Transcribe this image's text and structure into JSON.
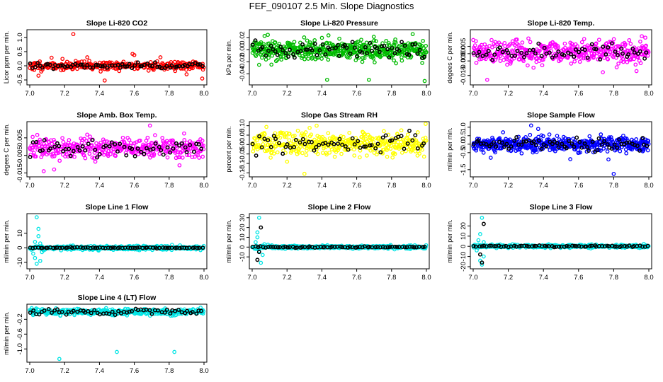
{
  "main_title": "FEF_090107  2.5 Min. Slope Diagnostics",
  "chart_data": [
    {
      "type": "scatter",
      "title": "Slope Li-820 CO2",
      "ylabel": "Licor ppm per min.",
      "color": "#ff0000",
      "xlim": [
        7.0,
        8.0
      ],
      "ylim": [
        -0.6,
        1.2
      ],
      "x_ticks": [
        "7.0",
        "7.2",
        "7.4",
        "7.6",
        "7.8",
        "8.0"
      ],
      "y_ticks": [
        {
          "v": -0.5,
          "l": "-0.5"
        },
        {
          "v": 0,
          "l": "0.0"
        },
        {
          "v": 0.5,
          "l": "0.5"
        },
        {
          "v": 1.0,
          "l": "1.0"
        }
      ],
      "series": [
        {
          "role": "main",
          "center": 0,
          "spread": 0.08,
          "count": 320,
          "seed": 11,
          "outliers": [
            [
              7.25,
              1.12
            ],
            [
              7.43,
              -0.52
            ],
            [
              7.6,
              0.38
            ],
            [
              7.59,
              0.42
            ],
            [
              7.99,
              -0.45
            ],
            [
              7.05,
              -0.35
            ],
            [
              7.9,
              -0.3
            ],
            [
              7.33,
              0.3
            ],
            [
              7.75,
              0.3
            ]
          ]
        },
        {
          "role": "highlight",
          "center": 0,
          "spread": 0.06,
          "count": 70,
          "seed": 12
        }
      ]
    },
    {
      "type": "scatter",
      "title": "Slope Li-820 Pressure",
      "ylabel": "kPa per min.",
      "color": "#00bb00",
      "xlim": [
        7.0,
        8.0
      ],
      "ylim": [
        -0.055,
        0.03
      ],
      "x_ticks": [
        "7.0",
        "7.2",
        "7.4",
        "7.6",
        "7.8",
        "8.0"
      ],
      "y_ticks": [
        {
          "v": -0.04,
          "l": "-0.04"
        },
        {
          "v": -0.02,
          "l": "-0.02"
        },
        {
          "v": 0,
          "l": "0.00"
        },
        {
          "v": 0.02,
          "l": "0.02"
        }
      ],
      "series": [
        {
          "role": "main",
          "center": 0,
          "spread": 0.008,
          "count": 480,
          "seed": 21,
          "outliers": [
            [
              7.04,
              -0.025
            ],
            [
              7.43,
              -0.05
            ],
            [
              7.67,
              -0.05
            ],
            [
              7.99,
              -0.052
            ],
            [
              7.09,
              0.025
            ]
          ]
        },
        {
          "role": "highlight",
          "center": 0,
          "spread": 0.007,
          "count": 70,
          "seed": 22
        }
      ]
    },
    {
      "type": "scatter",
      "title": "Slope Li-820 Temp.",
      "ylabel": "degees C per min.",
      "color": "#ff00ff",
      "xlim": [
        7.0,
        8.0
      ],
      "ylim": [
        -0.02,
        0.015
      ],
      "x_ticks": [
        "7.0",
        "7.2",
        "7.4",
        "7.6",
        "7.8",
        "8.0"
      ],
      "y_ticks": [
        {
          "v": -0.015,
          "l": "-0.015"
        },
        {
          "v": -0.005,
          "l": "-0.005"
        },
        {
          "v": 0.0,
          "l": "0.000"
        },
        {
          "v": 0.005,
          "l": "0.005"
        }
      ],
      "series": [
        {
          "role": "main",
          "center": 0.001,
          "spread": 0.004,
          "count": 420,
          "seed": 31,
          "outliers": [
            [
              7.08,
              -0.018
            ],
            [
              7.96,
              0.012
            ],
            [
              7.98,
              0.011
            ],
            [
              7.93,
              -0.012
            ]
          ]
        },
        {
          "role": "highlight",
          "center": 0.001,
          "spread": 0.003,
          "count": 60,
          "seed": 32
        }
      ]
    },
    {
      "type": "scatter",
      "title": "Slope Amb. Box Temp.",
      "ylabel": "degees C per min.",
      "color": "#ff00ff",
      "xlim": [
        7.0,
        8.0
      ],
      "ylim": [
        -0.016,
        0.013
      ],
      "x_ticks": [
        "7.0",
        "7.2",
        "7.4",
        "7.6",
        "7.8",
        "8.0"
      ],
      "y_ticks": [
        {
          "v": -0.015,
          "l": "-0.015"
        },
        {
          "v": -0.005,
          "l": "-0.005"
        },
        {
          "v": 0.005,
          "l": "0.005"
        }
      ],
      "series": [
        {
          "role": "main",
          "center": -0.001,
          "spread": 0.003,
          "count": 380,
          "seed": 41,
          "outliers": [
            [
              7.69,
              0.012
            ],
            [
              7.08,
              -0.014
            ],
            [
              7.14,
              -0.013
            ]
          ]
        },
        {
          "role": "highlight",
          "center": -0.001,
          "spread": 0.0025,
          "count": 60,
          "seed": 42
        }
      ]
    },
    {
      "type": "scatter",
      "title": "Slope Gas Stream RH",
      "ylabel": "percent per min.",
      "color": "#ffff00",
      "xlim": [
        7.0,
        8.0
      ],
      "ylim": [
        -0.16,
        0.11
      ],
      "x_ticks": [
        "7.0",
        "7.2",
        "7.4",
        "7.6",
        "7.8",
        "8.0"
      ],
      "y_ticks": [
        {
          "v": -0.15,
          "l": "-0.15"
        },
        {
          "v": -0.1,
          "l": "-0.10"
        },
        {
          "v": -0.05,
          "l": "-0.05"
        },
        {
          "v": 0,
          "l": "0.00"
        },
        {
          "v": 0.05,
          "l": "0.05"
        },
        {
          "v": 0.1,
          "l": "0.10"
        }
      ],
      "series": [
        {
          "role": "main",
          "center": 0.005,
          "spread": 0.03,
          "count": 420,
          "seed": 51,
          "outliers": [
            [
              7.3,
              -0.155
            ],
            [
              7.37,
              0.1
            ]
          ]
        },
        {
          "role": "highlight",
          "center": 0.005,
          "spread": 0.025,
          "count": 60,
          "seed": 52
        }
      ]
    },
    {
      "type": "scatter",
      "title": "Slope Sample Flow",
      "ylabel": "ml/min per min.",
      "color": "#0000ff",
      "xlim": [
        7.0,
        8.0
      ],
      "ylim": [
        -1.8,
        1.2
      ],
      "x_ticks": [
        "7.0",
        "7.2",
        "7.4",
        "7.6",
        "7.8",
        "8.0"
      ],
      "y_ticks": [
        {
          "v": -1.5,
          "l": "-1.5"
        },
        {
          "v": -0.5,
          "l": "-0.5"
        },
        {
          "v": 0,
          "l": "0.0"
        },
        {
          "v": 0.5,
          "l": "0.5"
        },
        {
          "v": 1.0,
          "l": "1.0"
        }
      ],
      "series": [
        {
          "role": "main",
          "center": 0,
          "spread": 0.22,
          "count": 480,
          "seed": 61,
          "outliers": [
            [
              7.33,
              1.1
            ],
            [
              7.17,
              0.7
            ],
            [
              7.37,
              0.9
            ],
            [
              7.8,
              -1.75
            ],
            [
              7.77,
              -0.9
            ],
            [
              7.95,
              -0.3
            ],
            [
              7.1,
              -0.8
            ]
          ]
        },
        {
          "role": "highlight",
          "center": 0,
          "spread": 0.18,
          "count": 70,
          "seed": 62
        }
      ]
    },
    {
      "type": "scatter",
      "title": "Slope Line 1 Flow",
      "ylabel": "ml/min per min.",
      "color": "#00e5e5",
      "xlim": [
        7.0,
        8.0
      ],
      "ylim": [
        -13,
        22
      ],
      "x_ticks": [
        "7.0",
        "7.2",
        "7.4",
        "7.6",
        "7.8",
        "8.0"
      ],
      "y_ticks": [
        {
          "v": -10,
          "l": "-10"
        },
        {
          "v": 0,
          "l": "0"
        },
        {
          "v": 10,
          "l": "10"
        }
      ],
      "series": [
        {
          "role": "main",
          "center": 0,
          "spread": 0.7,
          "count": 380,
          "seed": 71,
          "outliers": [
            [
              7.04,
              21
            ],
            [
              7.05,
              8
            ],
            [
              7.06,
              -9
            ],
            [
              7.04,
              -11
            ],
            [
              7.03,
              4
            ],
            [
              7.06,
              3
            ],
            [
              7.02,
              -4
            ],
            [
              7.07,
              -3
            ],
            [
              7.05,
              13
            ],
            [
              7.03,
              -7
            ]
          ]
        },
        {
          "role": "highlight",
          "center": 0,
          "spread": 0.15,
          "count": 70,
          "seed": 72
        }
      ]
    },
    {
      "type": "scatter",
      "title": "Slope Line 2 Flow",
      "ylabel": "ml/min per min.",
      "color": "#00e5e5",
      "xlim": [
        7.0,
        8.0
      ],
      "ylim": [
        -20,
        32
      ],
      "x_ticks": [
        "7.0",
        "7.2",
        "7.4",
        "7.6",
        "7.8",
        "8.0"
      ],
      "y_ticks": [
        {
          "v": -10,
          "l": "-10"
        },
        {
          "v": 0,
          "l": "0"
        },
        {
          "v": 10,
          "l": "10"
        },
        {
          "v": 20,
          "l": "20"
        },
        {
          "v": 30,
          "l": "30"
        }
      ],
      "series": [
        {
          "role": "main",
          "center": 0,
          "spread": 0.8,
          "count": 380,
          "seed": 81,
          "outliers": [
            [
              7.04,
              30
            ],
            [
              7.05,
              -16
            ],
            [
              7.03,
              10
            ],
            [
              7.02,
              5
            ],
            [
              7.06,
              -8
            ],
            [
              7.04,
              -4
            ],
            [
              7.03,
              15
            ],
            [
              7.07,
              3
            ]
          ]
        },
        {
          "role": "highlight",
          "center": 0,
          "spread": 0.3,
          "count": 70,
          "seed": 82,
          "outliers": [
            [
              7.05,
              20
            ],
            [
              7.03,
              -13
            ],
            [
              7.04,
              -5
            ]
          ]
        }
      ]
    },
    {
      "type": "scatter",
      "title": "Slope Line 3 Flow",
      "ylabel": "ml/min per min.",
      "color": "#00e5e5",
      "xlim": [
        7.0,
        8.0
      ],
      "ylim": [
        -20,
        30
      ],
      "x_ticks": [
        "7.0",
        "7.2",
        "7.4",
        "7.6",
        "7.8",
        "8.0"
      ],
      "y_ticks": [
        {
          "v": -20,
          "l": "-20"
        },
        {
          "v": -10,
          "l": "-10"
        },
        {
          "v": 0,
          "l": "0"
        },
        {
          "v": 10,
          "l": "10"
        },
        {
          "v": 20,
          "l": "20"
        }
      ],
      "series": [
        {
          "role": "main",
          "center": 0,
          "spread": 0.8,
          "count": 380,
          "seed": 91,
          "outliers": [
            [
              7.05,
              28
            ],
            [
              7.05,
              -18
            ],
            [
              7.04,
              12
            ],
            [
              7.03,
              6
            ],
            [
              7.06,
              -10
            ],
            [
              7.02,
              -4
            ],
            [
              7.04,
              -14
            ],
            [
              7.06,
              4
            ]
          ]
        },
        {
          "role": "highlight",
          "center": 0,
          "spread": 0.4,
          "count": 70,
          "seed": 92,
          "outliers": [
            [
              7.06,
              22
            ],
            [
              7.05,
              -16
            ],
            [
              7.04,
              -8
            ]
          ]
        }
      ]
    },
    {
      "type": "scatter",
      "title": "Slope Line 4 (LT) Flow",
      "ylabel": "ml/min per min.",
      "color": "#00e5e5",
      "xlim": [
        7.0,
        8.0
      ],
      "ylim": [
        -1.3,
        0.15
      ],
      "x_ticks": [
        "7.0",
        "7.2",
        "7.4",
        "7.6",
        "7.8",
        "8.0"
      ],
      "y_ticks": [
        {
          "v": -1.0,
          "l": "-1.0"
        },
        {
          "v": -0.6,
          "l": "-0.6"
        },
        {
          "v": -0.2,
          "l": "-0.2"
        }
      ],
      "series": [
        {
          "role": "main",
          "center": 0,
          "spread": 0.04,
          "count": 380,
          "seed": 101,
          "outliers": [
            [
              7.17,
              -1.27
            ],
            [
              7.5,
              -1.08
            ],
            [
              7.83,
              -1.08
            ]
          ]
        },
        {
          "role": "highlight",
          "center": 0,
          "spread": 0.035,
          "count": 60,
          "seed": 102
        }
      ]
    }
  ]
}
